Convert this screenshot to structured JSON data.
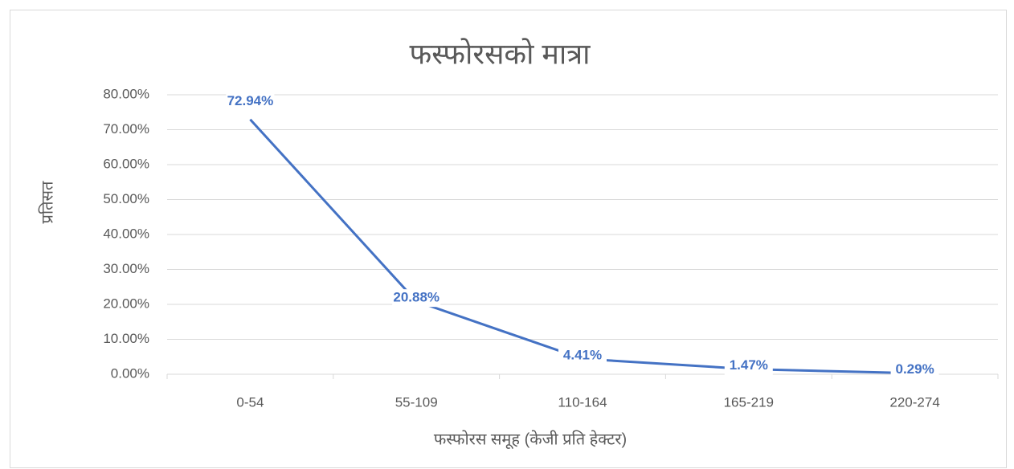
{
  "chart_data": {
    "type": "line",
    "title": "फस्फोरसको मात्रा",
    "x_label": "फस्फोरस समूह (केजी प्रति हेक्टर)",
    "y_label": "प्रतिसत",
    "categories": [
      "0-54",
      "55-109",
      "110-164",
      "165-219",
      "220-274"
    ],
    "values": [
      72.94,
      20.88,
      4.41,
      1.47,
      0.29
    ],
    "value_labels": [
      "72.94%",
      "20.88%",
      "4.41%",
      "1.47%",
      "0.29%"
    ],
    "color": "#4472c4",
    "ylim": [
      0,
      80
    ],
    "yticks": [
      {
        "value": 0,
        "label": "0.00%"
      },
      {
        "value": 10,
        "label": "10.00%"
      },
      {
        "value": 20,
        "label": "20.00%"
      },
      {
        "value": 30,
        "label": "30.00%"
      },
      {
        "value": 40,
        "label": "40.00%"
      },
      {
        "value": 50,
        "label": "50.00%"
      },
      {
        "value": 60,
        "label": "60.00%"
      },
      {
        "value": 70,
        "label": "70.00%"
      },
      {
        "value": 80,
        "label": "80.00%"
      }
    ],
    "grid": true
  }
}
